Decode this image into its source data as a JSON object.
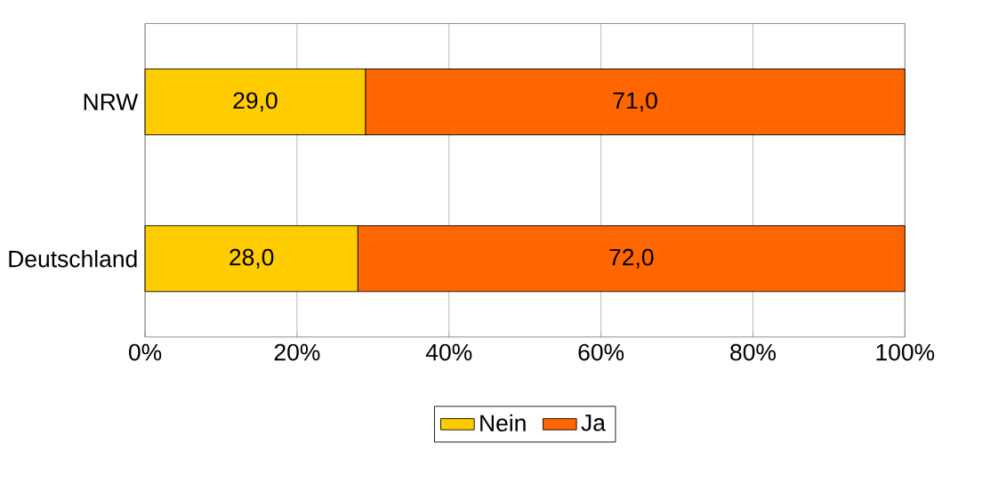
{
  "chart_data": {
    "type": "bar",
    "orientation": "horizontal",
    "stacked": true,
    "categories": [
      "NRW",
      "Deutschland"
    ],
    "series": [
      {
        "name": "Nein",
        "color": "#ffcc00",
        "values": [
          29,
          28
        ],
        "value_labels": [
          "29,0",
          "28,0"
        ]
      },
      {
        "name": "Ja",
        "color": "#ff6600",
        "values": [
          71,
          72
        ],
        "value_labels": [
          "71,0",
          "72,0"
        ]
      }
    ],
    "xlim": [
      0,
      100
    ],
    "xticks": [
      {
        "value": 0,
        "label": "0%"
      },
      {
        "value": 20,
        "label": "20%"
      },
      {
        "value": 40,
        "label": "40%"
      },
      {
        "value": 60,
        "label": "60%"
      },
      {
        "value": 80,
        "label": "80%"
      },
      {
        "value": 100,
        "label": "100%"
      }
    ],
    "grid": "x",
    "legend": "bottom"
  }
}
